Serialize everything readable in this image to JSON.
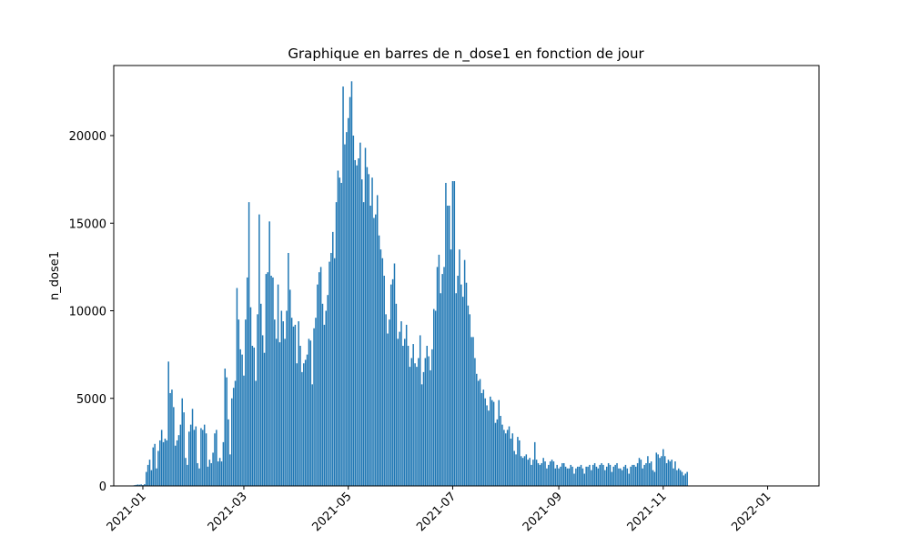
{
  "chart_data": {
    "type": "bar",
    "title": "Graphique en barres de n_dose1 en fonction de jour",
    "xlabel": "",
    "ylabel": "n_dose1",
    "bar_color": "#1f77b4",
    "x_range": [
      "2020-12-15",
      "2022-01-31"
    ],
    "ylim": [
      0,
      24000
    ],
    "y_ticks": [
      0,
      5000,
      10000,
      15000,
      20000
    ],
    "y_tick_labels": [
      "0",
      "5000",
      "10000",
      "15000",
      "20000"
    ],
    "x_ticks": [
      "2021-01-01",
      "2021-03-01",
      "2021-05-01",
      "2021-07-01",
      "2021-09-01",
      "2021-11-01",
      "2022-01-01"
    ],
    "x_tick_labels": [
      "2021-01",
      "2021-03",
      "2021-05",
      "2021-07",
      "2021-09",
      "2021-11",
      "2022-01"
    ],
    "start_date": "2020-12-27",
    "values": [
      40,
      60,
      80,
      70,
      90,
      50,
      100,
      800,
      1200,
      1500,
      900,
      2200,
      2400,
      1000,
      2000,
      2600,
      3200,
      2500,
      2700,
      2600,
      7100,
      5300,
      5500,
      4500,
      2300,
      2600,
      2900,
      3500,
      5000,
      4200,
      1600,
      1200,
      3100,
      3500,
      4400,
      3200,
      3400,
      1300,
      1000,
      3300,
      3200,
      3500,
      3000,
      1100,
      1500,
      1300,
      1900,
      3000,
      3200,
      1400,
      1600,
      1400,
      2500,
      6700,
      6200,
      3800,
      1800,
      5000,
      5600,
      6000,
      11300,
      9500,
      7800,
      7500,
      6300,
      9500,
      11900,
      16200,
      10200,
      8000,
      7900,
      6000,
      9800,
      15500,
      10400,
      8600,
      7600,
      12100,
      12200,
      15100,
      12000,
      11900,
      9500,
      8400,
      11500,
      8200,
      10000,
      9400,
      8400,
      10000,
      13300,
      11200,
      9600,
      9100,
      9200,
      7000,
      9400,
      8000,
      6500,
      7000,
      7200,
      7500,
      8400,
      8300,
      5800,
      9000,
      9600,
      11500,
      12200,
      12500,
      10400,
      9200,
      10000,
      10900,
      12800,
      13300,
      14500,
      13000,
      16200,
      18000,
      17600,
      17300,
      22800,
      19500,
      20200,
      21000,
      22200,
      23100,
      20000,
      18600,
      18300,
      18700,
      19600,
      17500,
      16200,
      19300,
      18200,
      17800,
      16000,
      17600,
      15300,
      15500,
      16600,
      14300,
      13500,
      13000,
      12000,
      9800,
      8700,
      9500,
      11500,
      11800,
      12700,
      10400,
      8400,
      8800,
      9400,
      8000,
      8400,
      9200,
      8000,
      6800,
      7300,
      8100,
      7000,
      6800,
      7300,
      8600,
      5800,
      6500,
      7300,
      8000,
      7400,
      6600,
      7800,
      10100,
      10000,
      12500,
      13200,
      11000,
      12100,
      12500,
      17300,
      16000,
      16000,
      13500,
      17400,
      17400,
      11000,
      12000,
      13500,
      11500,
      10800,
      12900,
      11600,
      10300,
      9800,
      8500,
      8500,
      7300,
      6400,
      6000,
      6100,
      5300,
      5500,
      5000,
      4600,
      4300,
      5100,
      4900,
      4800,
      3600,
      3800,
      4900,
      4000,
      3500,
      3200,
      3000,
      3200,
      3400,
      2700,
      3000,
      2000,
      1800,
      2800,
      2600,
      1700,
      1600,
      1700,
      1800,
      1500,
      1600,
      1200,
      1500,
      2500,
      1500,
      1300,
      1200,
      1300,
      1600,
      1400,
      1000,
      1200,
      1400,
      1500,
      1400,
      1000,
      1200,
      1000,
      1100,
      1300,
      1300,
      1100,
      1000,
      1000,
      1200,
      1100,
      700,
      1000,
      1100,
      1100,
      1200,
      1000,
      700,
      1100,
      1100,
      1200,
      900,
      1200,
      1300,
      1100,
      1000,
      1200,
      1300,
      1200,
      900,
      1100,
      1300,
      1200,
      800,
      1100,
      1200,
      1300,
      1000,
      1000,
      900,
      1100,
      1200,
      1000,
      700,
      1100,
      1200,
      1200,
      1100,
      1300,
      1600,
      1500,
      1000,
      1200,
      1300,
      1700,
      1300,
      1400,
      900,
      800,
      1900,
      1800,
      1600,
      1700,
      2100,
      1700,
      1300,
      1500,
      1400,
      1500,
      1000,
      1400,
      900,
      1000,
      900,
      800,
      600,
      700,
      800
    ]
  }
}
